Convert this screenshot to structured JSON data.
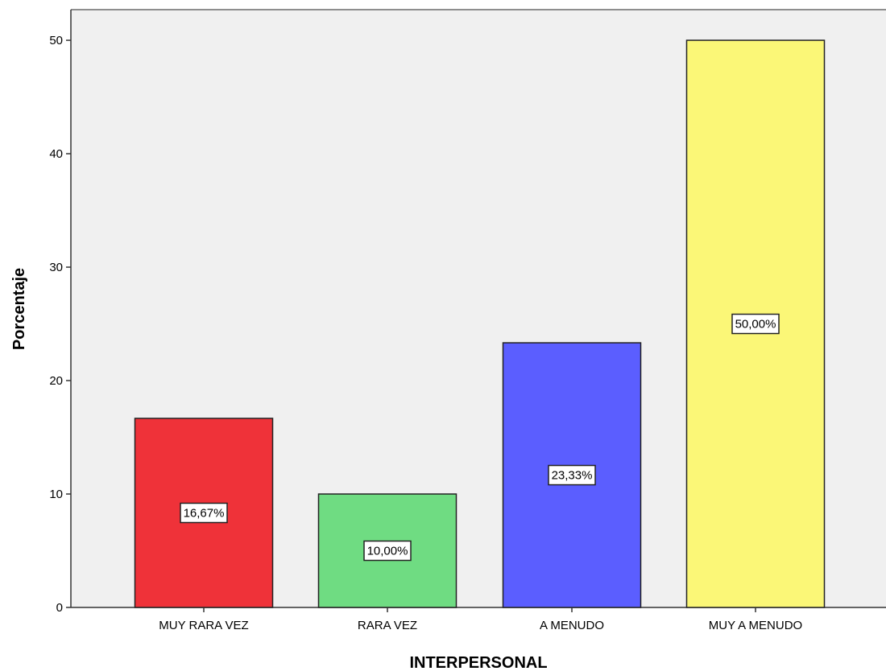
{
  "chart_data": {
    "type": "bar",
    "categories": [
      "MUY RARA VEZ",
      "RARA VEZ",
      "A MENUDO",
      "MUY A MENUDO"
    ],
    "values": [
      16.67,
      10.0,
      23.33,
      50.0
    ],
    "data_labels": [
      "16,67%",
      "10,00%",
      "23,33%",
      "50,00%"
    ],
    "bar_colors": [
      "#ef3239",
      "#6fdc82",
      "#5b5eff",
      "#fbf777"
    ],
    "plot_background": "#f0f0f0",
    "title": "",
    "xlabel": "INTERPERSONAL",
    "ylabel": "Porcentaje",
    "ylim": [
      0,
      52.7
    ],
    "yticks": [
      0,
      10,
      20,
      30,
      40,
      50
    ],
    "ytick_labels": [
      "0",
      "10",
      "20",
      "30",
      "40",
      "50"
    ],
    "grid": false,
    "legend": "none"
  }
}
